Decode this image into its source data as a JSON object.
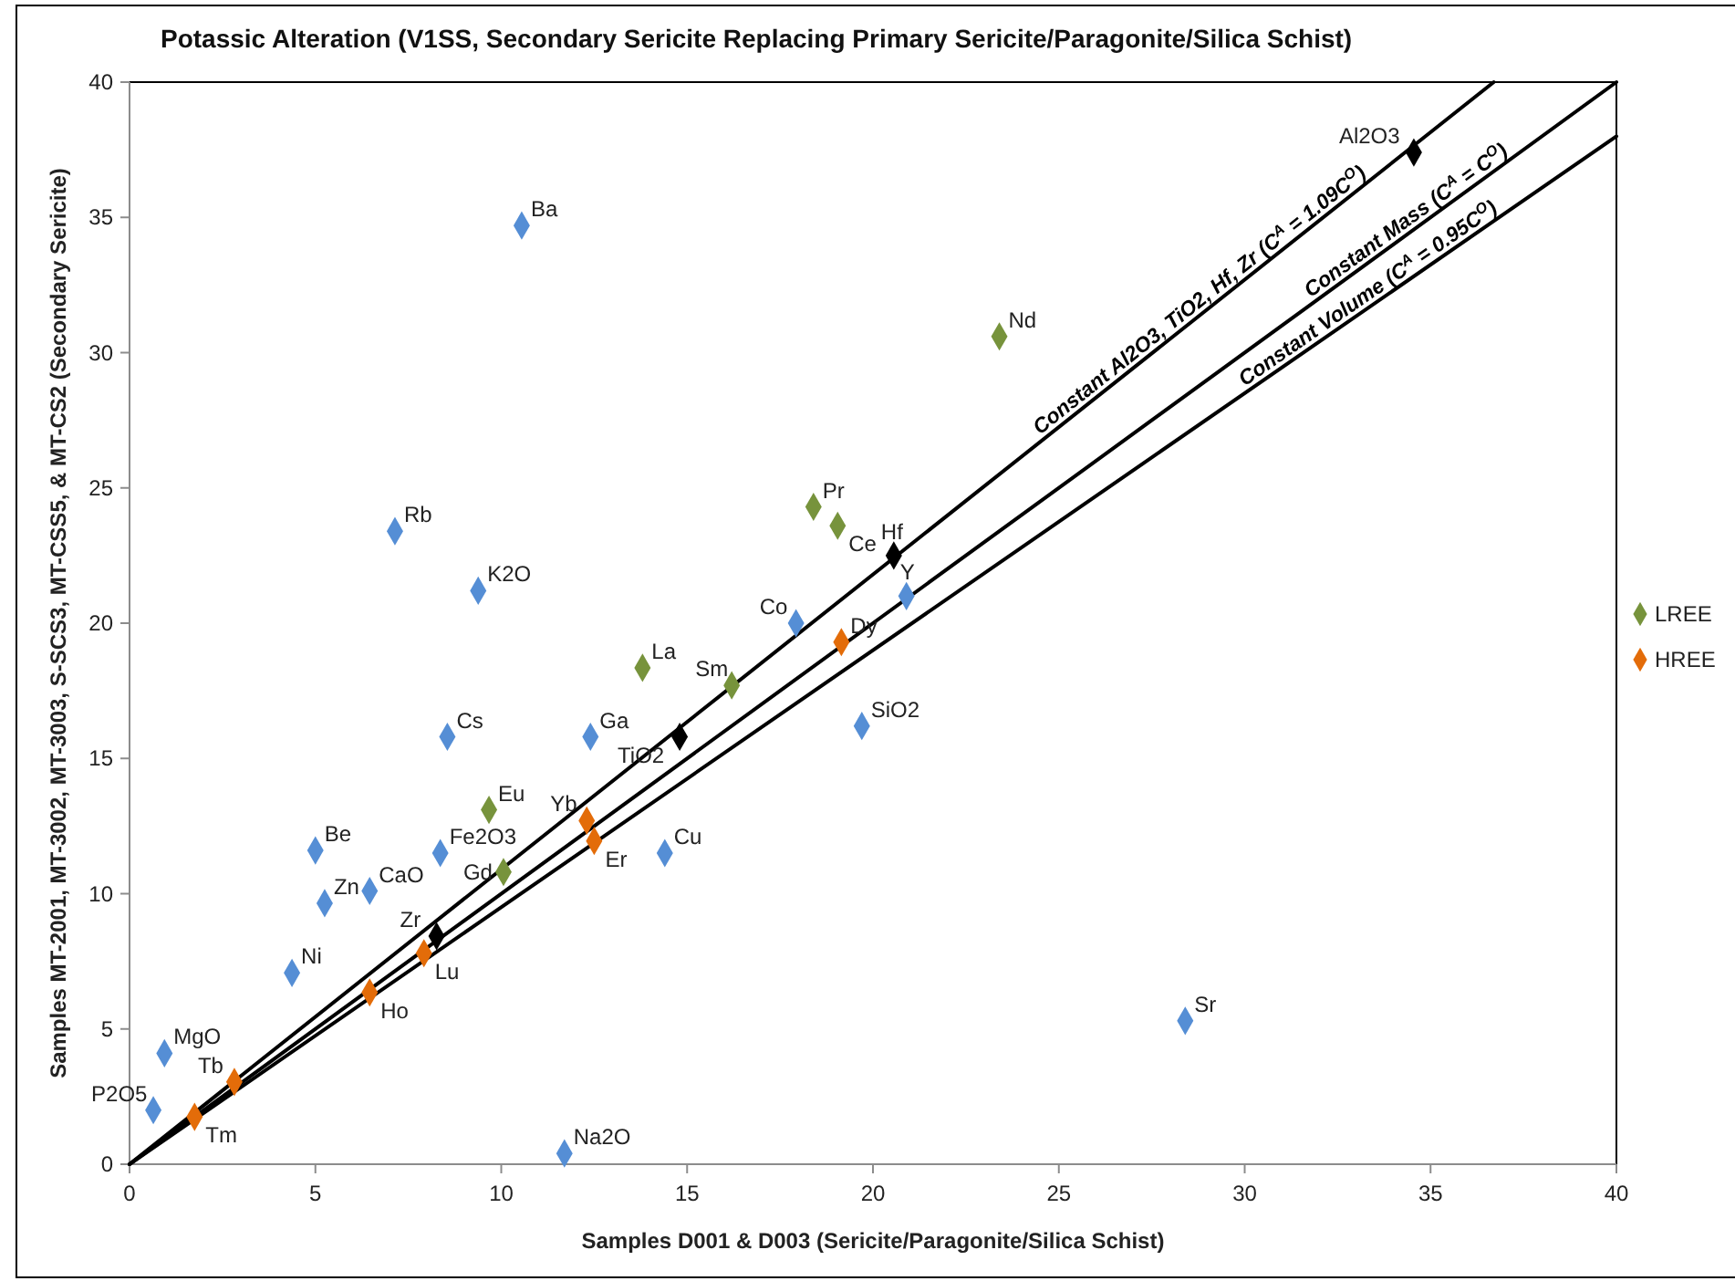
{
  "chart_data": {
    "type": "scatter",
    "title": "Potassic Alteration (V1SS, Secondary Sericite Replacing Primary Sericite/Paragonite/Silica Schist)",
    "xlabel": "Samples D001 & D003 (Sericite/Paragonite/Silica Schist)",
    "ylabel": "Samples MT-2001, MT-3002, MT-3003, S-SCS3, MT-CSS5, & MT-CS2 (Secondary Sericite)",
    "xlim": [
      0,
      40
    ],
    "ylim": [
      0,
      40
    ],
    "xticks": [
      0,
      5,
      10,
      15,
      20,
      25,
      30,
      35,
      40
    ],
    "yticks": [
      0,
      5,
      10,
      15,
      20,
      25,
      30,
      35,
      40
    ],
    "grid": false,
    "legend": "right",
    "marker": "diamond",
    "series": [
      {
        "type": "line",
        "name": "Constant Al2O3, TiO2, Hf, Zr (C$^{A}$ = 1.09C$^{O}$)",
        "color": "#000000",
        "x": [
          0,
          36.7
        ],
        "values": [
          0,
          40.0
        ],
        "marker": "none",
        "line_style": "solid"
      },
      {
        "type": "line",
        "name": "Constant Mass (C$^{A}$ = C$^{O}$)",
        "color": "#000000",
        "x": [
          0,
          40
        ],
        "values": [
          0,
          40
        ],
        "marker": "none",
        "line_style": "solid"
      },
      {
        "type": "line",
        "name": "Constant Volume  (C$^{A}$ = 0.95C$^{O}$)",
        "color": "#000000",
        "x": [
          0,
          40
        ],
        "values": [
          0,
          38
        ],
        "marker": "none",
        "line_style": "solid"
      },
      {
        "color": "#558ed5",
        "x": [
          10.55,
          7.14,
          9.38,
          17.93,
          20.9,
          12.4,
          19.7,
          8.55,
          5.0,
          8.36,
          6.46,
          5.25,
          4.37,
          0.94,
          0.64,
          11.7,
          14.4,
          28.4
        ],
        "values": [
          34.7,
          23.4,
          21.2,
          20.0,
          21.0,
          15.8,
          16.2,
          15.8,
          11.6,
          11.5,
          10.1,
          9.65,
          7.07,
          4.1,
          2.0,
          0.4,
          11.5,
          5.3
        ]
      },
      {
        "name": "LREE",
        "color": "#77933c",
        "x": [
          23.4,
          18.4,
          19.05,
          13.8,
          16.2,
          9.67,
          10.06
        ],
        "values": [
          30.6,
          24.3,
          23.6,
          18.35,
          17.7,
          13.1,
          10.8
        ]
      },
      {
        "name": "HREE",
        "color": "#e36c09",
        "x": [
          19.15,
          12.3,
          12.5,
          7.92,
          6.46,
          2.82,
          1.75
        ],
        "values": [
          19.3,
          12.7,
          11.95,
          7.8,
          6.35,
          3.04,
          1.75
        ]
      },
      {
        "color": "#000000",
        "x": [
          34.55,
          20.56,
          14.8,
          8.26
        ],
        "values": [
          37.4,
          22.5,
          15.8,
          8.43
        ]
      }
    ],
    "annotations": [
      {
        "text": "Ba",
        "x": 10.55,
        "y": 34.7
      },
      {
        "text": "Rb",
        "x": 7.14,
        "y": 23.4
      },
      {
        "text": "K2O",
        "x": 9.38,
        "y": 21.2
      },
      {
        "text": "Co",
        "x": 17.93,
        "y": 20.0
      },
      {
        "text": "Y",
        "x": 20.9,
        "y": 21.0
      },
      {
        "text": "Ga",
        "x": 12.4,
        "y": 15.8
      },
      {
        "text": "SiO2",
        "x": 19.7,
        "y": 16.2
      },
      {
        "text": "Cs",
        "x": 8.55,
        "y": 15.8
      },
      {
        "text": "Be",
        "x": 5.0,
        "y": 11.6
      },
      {
        "text": "Fe2O3",
        "x": 8.36,
        "y": 11.5
      },
      {
        "text": "CaO",
        "x": 6.46,
        "y": 10.1
      },
      {
        "text": "Zn",
        "x": 5.25,
        "y": 9.65
      },
      {
        "text": "Ni",
        "x": 4.37,
        "y": 7.07
      },
      {
        "text": "MgO",
        "x": 0.94,
        "y": 4.1
      },
      {
        "text": "P2O5",
        "x": 0.64,
        "y": 2.0
      },
      {
        "text": "Na2O",
        "x": 11.7,
        "y": 0.4
      },
      {
        "text": "Cu",
        "x": 14.4,
        "y": 11.5
      },
      {
        "text": "Sr",
        "x": 28.4,
        "y": 5.3
      },
      {
        "text": "Nd",
        "x": 23.4,
        "y": 30.6
      },
      {
        "text": "Pr",
        "x": 18.4,
        "y": 24.3
      },
      {
        "text": "Ce",
        "x": 19.05,
        "y": 23.6
      },
      {
        "text": "La",
        "x": 13.8,
        "y": 18.35
      },
      {
        "text": "Sm",
        "x": 16.2,
        "y": 17.7
      },
      {
        "text": "Eu",
        "x": 9.67,
        "y": 13.1
      },
      {
        "text": "Gd",
        "x": 10.06,
        "y": 10.8
      },
      {
        "text": "Dy",
        "x": 19.15,
        "y": 19.3
      },
      {
        "text": "Yb",
        "x": 12.3,
        "y": 12.7
      },
      {
        "text": "Er",
        "x": 12.5,
        "y": 11.95
      },
      {
        "text": "Lu",
        "x": 7.92,
        "y": 7.8
      },
      {
        "text": "Ho",
        "x": 6.46,
        "y": 6.35
      },
      {
        "text": "Tb",
        "x": 2.82,
        "y": 3.04
      },
      {
        "text": "Tm",
        "x": 1.75,
        "y": 1.75
      },
      {
        "text": "Al2O3",
        "x": 34.55,
        "y": 37.4
      },
      {
        "text": "Hf",
        "x": 20.56,
        "y": 22.5
      },
      {
        "text": "TiO2",
        "x": 14.8,
        "y": 15.8
      },
      {
        "text": "Zr",
        "x": 8.26,
        "y": 8.43
      }
    ]
  }
}
